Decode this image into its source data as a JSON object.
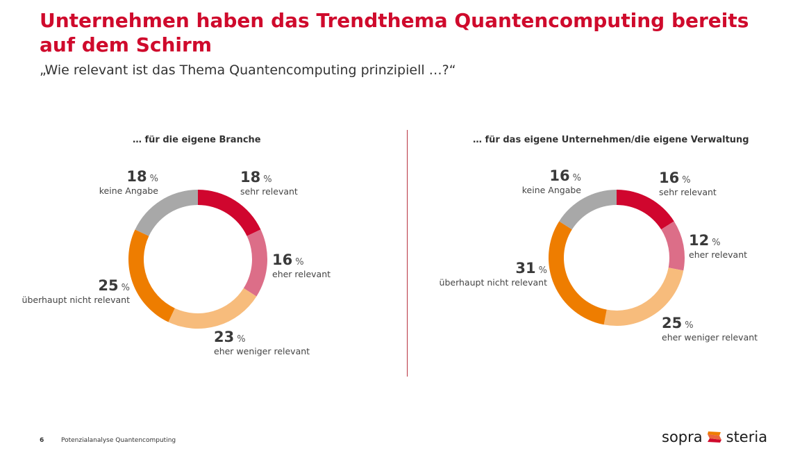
{
  "title": "Unternehmen haben das Trendthema Quantencomputing bereits auf dem Schirm",
  "subtitle": "„Wie relevant ist das Thema Quantencomputing prinzipiell …?“",
  "footer": {
    "page": "6",
    "text": "Potenzialanalyse Quantencomputing"
  },
  "logo": {
    "left": "sopra",
    "right": "steria"
  },
  "colors": {
    "sehr relevant": "#d0062e",
    "eher relevant": "#dc6e88",
    "eher weniger relevant": "#f7bc7c",
    "überhaupt nicht relevant": "#ee7d00",
    "keine Angabe": "#a8a8a8",
    "title": "#cf0a2c"
  },
  "chart_data": [
    {
      "type": "pie",
      "donut": true,
      "title": "… für die eigene Branche",
      "unit": "%",
      "categories": [
        "sehr relevant",
        "eher relevant",
        "eher weniger relevant",
        "überhaupt nicht relevant",
        "keine Angabe"
      ],
      "values": [
        18,
        16,
        23,
        25,
        18
      ]
    },
    {
      "type": "pie",
      "donut": true,
      "title": "… für das eigene Unternehmen/die eigene Verwaltung",
      "unit": "%",
      "categories": [
        "sehr relevant",
        "eher relevant",
        "eher weniger relevant",
        "überhaupt nicht relevant",
        "keine Angabe"
      ],
      "values": [
        16,
        12,
        25,
        31,
        16
      ]
    }
  ]
}
